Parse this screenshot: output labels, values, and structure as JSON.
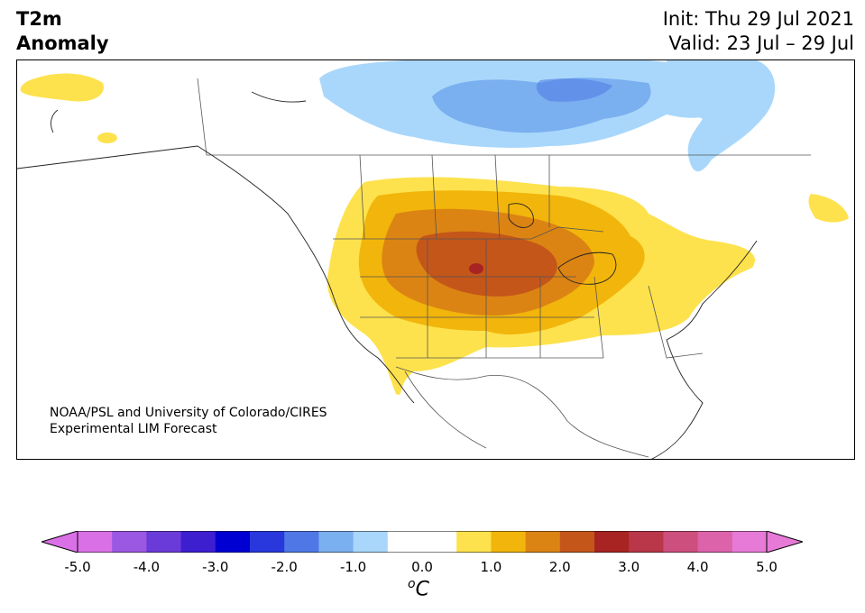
{
  "title": {
    "left_line1": "T2m",
    "left_line2": "Anomaly",
    "right_line1": "Init: Thu 29 Jul 2021",
    "right_line2": "Valid: 23 Jul – 29 Jul"
  },
  "credit": {
    "line1": "NOAA/PSL and University of Colorado/CIRES",
    "line2": "Experimental LIM Forecast"
  },
  "colorbar": {
    "colors": [
      "#da70e6",
      "#9b58e3",
      "#6a3bd9",
      "#3d1fd0",
      "#0000d2",
      "#2838dc",
      "#4f78e6",
      "#7aaff0",
      "#a9d7fb",
      "#ffffff",
      "#ffffff",
      "#fde24d",
      "#f2b50b",
      "#dc8413",
      "#c4561a",
      "#a82422",
      "#ba3649",
      "#cc4f7d",
      "#dc63aa",
      "#e67ad6"
    ],
    "ticks": [
      "-5.0",
      "-4.0",
      "-3.0",
      "-2.0",
      "-1.0",
      "0.0",
      "1.0",
      "2.0",
      "3.0",
      "4.0",
      "5.0"
    ],
    "unit_base": "C",
    "unit_sup": "o"
  }
}
